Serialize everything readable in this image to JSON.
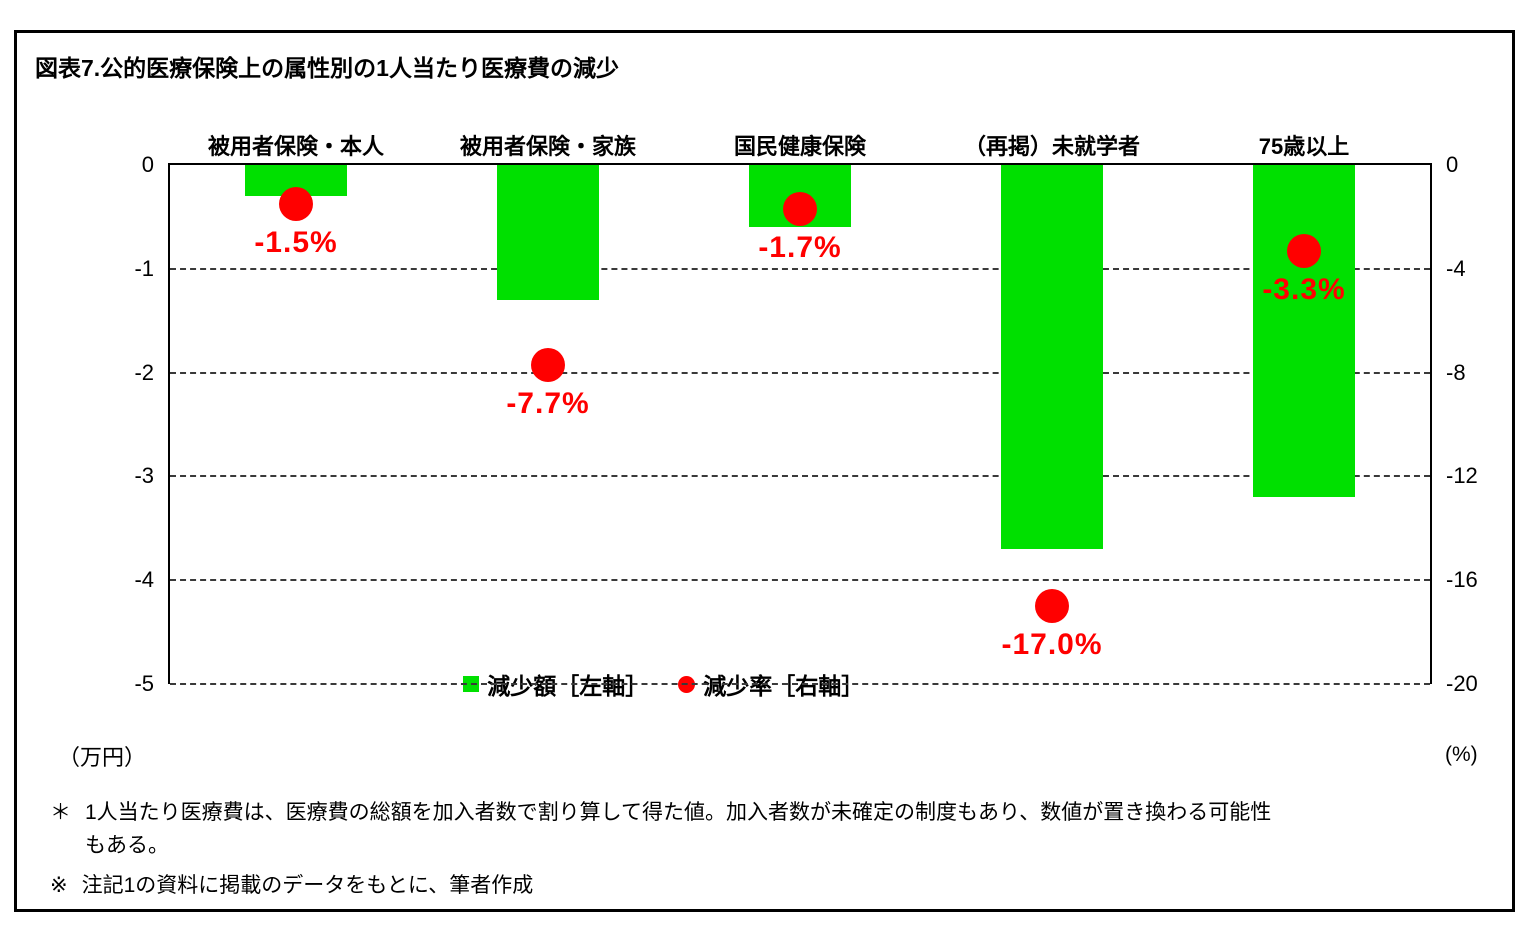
{
  "title": "図表7.公的医療保険上の属性別の1人当たり医療費の減少",
  "chart_data": {
    "type": "bar",
    "categories": [
      "被用者保険・本人",
      "被用者保険・家族",
      "国民健康保険",
      "（再掲）未就学者",
      "75歳以上"
    ],
    "series": [
      {
        "name": "減少額［左軸］",
        "type": "bar",
        "axis": "left",
        "unit": "万円",
        "values": [
          -0.3,
          -1.3,
          -0.6,
          -3.7,
          -3.2
        ]
      },
      {
        "name": "減少率［右軸］",
        "type": "point",
        "axis": "right",
        "unit": "%",
        "values": [
          -1.5,
          -7.7,
          -1.7,
          -17.0,
          -3.3
        ],
        "labels": [
          "-1.5%",
          "-7.7%",
          "-1.7%",
          "-17.0%",
          "-3.3%"
        ]
      }
    ],
    "left_axis": {
      "label": "（万円）",
      "min": -5,
      "max": 0,
      "ticks": [
        "0",
        "-1",
        "-2",
        "-3",
        "-4",
        "-5"
      ]
    },
    "right_axis": {
      "label": "(%)",
      "min": -20,
      "max": 0,
      "ticks": [
        "0",
        "-4",
        "-8",
        "-12",
        "-16",
        "-20"
      ]
    },
    "grid": true,
    "legend_position": "bottom-inside",
    "colors": {
      "bar": "#00e000",
      "point": "#ff0000",
      "label": "#ff0000",
      "grid": "#3a3a3a"
    }
  },
  "legend": {
    "bar_label": "減少額［左軸］",
    "point_label": "減少率［右軸］"
  },
  "notes": [
    {
      "marker": "＊",
      "text": "1人当たり医療費は、医療費の総額を加入者数で割り算して得た値。加入者数が未確定の制度もあり、数値が置き換わる可能性\nもある。"
    },
    {
      "marker": "※",
      "text": "注記1の資料に掲載のデータをもとに、筆者作成"
    }
  ]
}
